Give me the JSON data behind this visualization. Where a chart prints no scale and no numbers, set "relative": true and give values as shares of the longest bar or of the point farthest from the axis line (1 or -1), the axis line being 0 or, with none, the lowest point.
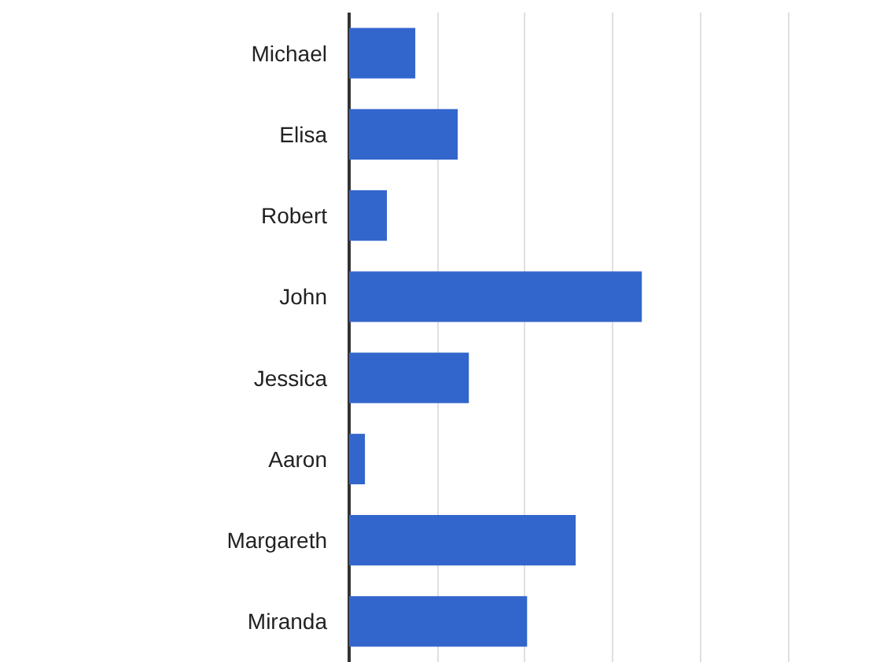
{
  "chart_data": {
    "type": "bar",
    "orientation": "horizontal",
    "relative": true,
    "grid": "x",
    "color": "#3366cc",
    "categories": [
      "Michael",
      "Elisa",
      "Robert",
      "John",
      "Jessica",
      "Aaron",
      "Margareth",
      "Miranda"
    ],
    "values": [
      0.226,
      0.371,
      0.129,
      1,
      0.409,
      0.054,
      0.774,
      0.608
    ]
  }
}
